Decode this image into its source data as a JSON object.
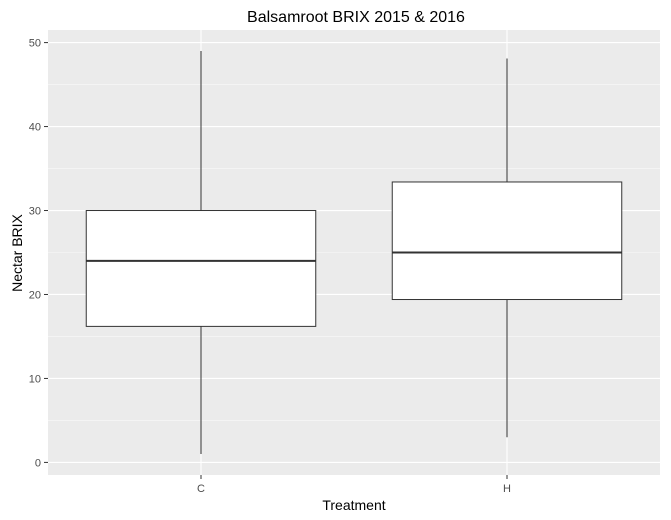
{
  "chart_data": {
    "type": "boxplot",
    "title": "Balsamroot BRIX 2015 & 2016",
    "xlabel": "Treatment",
    "ylabel": "Nectar BRIX",
    "categories": [
      "C",
      "H"
    ],
    "ylim": [
      -1.5,
      51.5
    ],
    "yticks": [
      0,
      10,
      20,
      30,
      40,
      50
    ],
    "boxes": [
      {
        "category": "C",
        "min": 1,
        "q1": 16.2,
        "median": 24,
        "q3": 30,
        "max": 49
      },
      {
        "category": "H",
        "min": 3,
        "q1": 19.4,
        "median": 25,
        "q3": 33.4,
        "max": 48.1
      }
    ],
    "grid": true,
    "colors": {
      "panel": "#ebebeb",
      "grid_major": "#ffffff",
      "box_fill": "#ffffff",
      "box_stroke": "#333333"
    }
  }
}
